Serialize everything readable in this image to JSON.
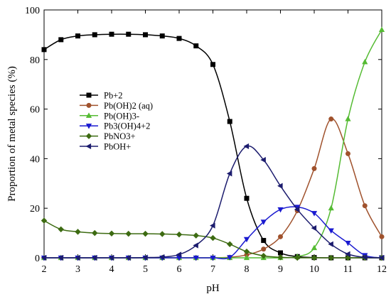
{
  "chart_data": {
    "type": "line",
    "xlabel": "pH",
    "ylabel": "Proportion of metal species (%)",
    "xlim": [
      2,
      12
    ],
    "ylim": [
      0,
      100
    ],
    "xticks": [
      "2",
      "3",
      "4",
      "5",
      "6",
      "7",
      "8",
      "9",
      "10",
      "11",
      "12"
    ],
    "yticks": [
      "0",
      "20",
      "40",
      "60",
      "80",
      "100"
    ],
    "grid": false,
    "legend_position": "center-left",
    "x": [
      2,
      2.5,
      3,
      3.5,
      4,
      4.5,
      5,
      5.5,
      6,
      6.5,
      7,
      7.5,
      8,
      8.5,
      9,
      9.5,
      10,
      10.5,
      11,
      11.5,
      12
    ],
    "series": [
      {
        "name": "Pb+2",
        "color": "#000000",
        "marker": "square",
        "values": [
          84,
          88,
          89.5,
          90,
          90.2,
          90.2,
          90,
          89.5,
          88.5,
          85.5,
          78,
          55,
          24,
          7,
          2,
          0.5,
          0.1,
          0,
          0,
          0,
          0
        ]
      },
      {
        "name": "Pb(OH)2 (aq)",
        "color": "#a0522d",
        "marker": "circle",
        "values": [
          0,
          0,
          0,
          0,
          0,
          0,
          0,
          0,
          0,
          0,
          0,
          0.2,
          1.2,
          3.5,
          8.5,
          19,
          36,
          56,
          42,
          21,
          8.5
        ]
      },
      {
        "name": "Pb(OH)3-",
        "color": "#55bb33",
        "marker": "triangle-up",
        "values": [
          0,
          0,
          0,
          0,
          0,
          0,
          0,
          0,
          0,
          0,
          0,
          0,
          0,
          0,
          0,
          0.5,
          4,
          20,
          56,
          79,
          92
        ]
      },
      {
        "name": "Pb3(OH)4+2",
        "color": "#1a1ad0",
        "marker": "triangle-down",
        "values": [
          0,
          0,
          0,
          0,
          0,
          0,
          0,
          0,
          0,
          0,
          0,
          0.2,
          7.5,
          14.5,
          19.5,
          20.5,
          18,
          11,
          6,
          1,
          0
        ]
      },
      {
        "name": "PbNO3+",
        "color": "#3d6b12",
        "marker": "diamond",
        "values": [
          15,
          11.5,
          10.5,
          10,
          9.8,
          9.7,
          9.7,
          9.6,
          9.4,
          9,
          8,
          5.5,
          2.5,
          0.8,
          0.2,
          0,
          0,
          0,
          0,
          0,
          0
        ]
      },
      {
        "name": "PbOH+",
        "color": "#1c1c6e",
        "marker": "triangle-left",
        "values": [
          0,
          0,
          0,
          0,
          0,
          0,
          0.1,
          0.3,
          1.3,
          5,
          13,
          34,
          45,
          39.5,
          29,
          19.5,
          12,
          5.5,
          1.5,
          0.2,
          0
        ]
      }
    ]
  }
}
